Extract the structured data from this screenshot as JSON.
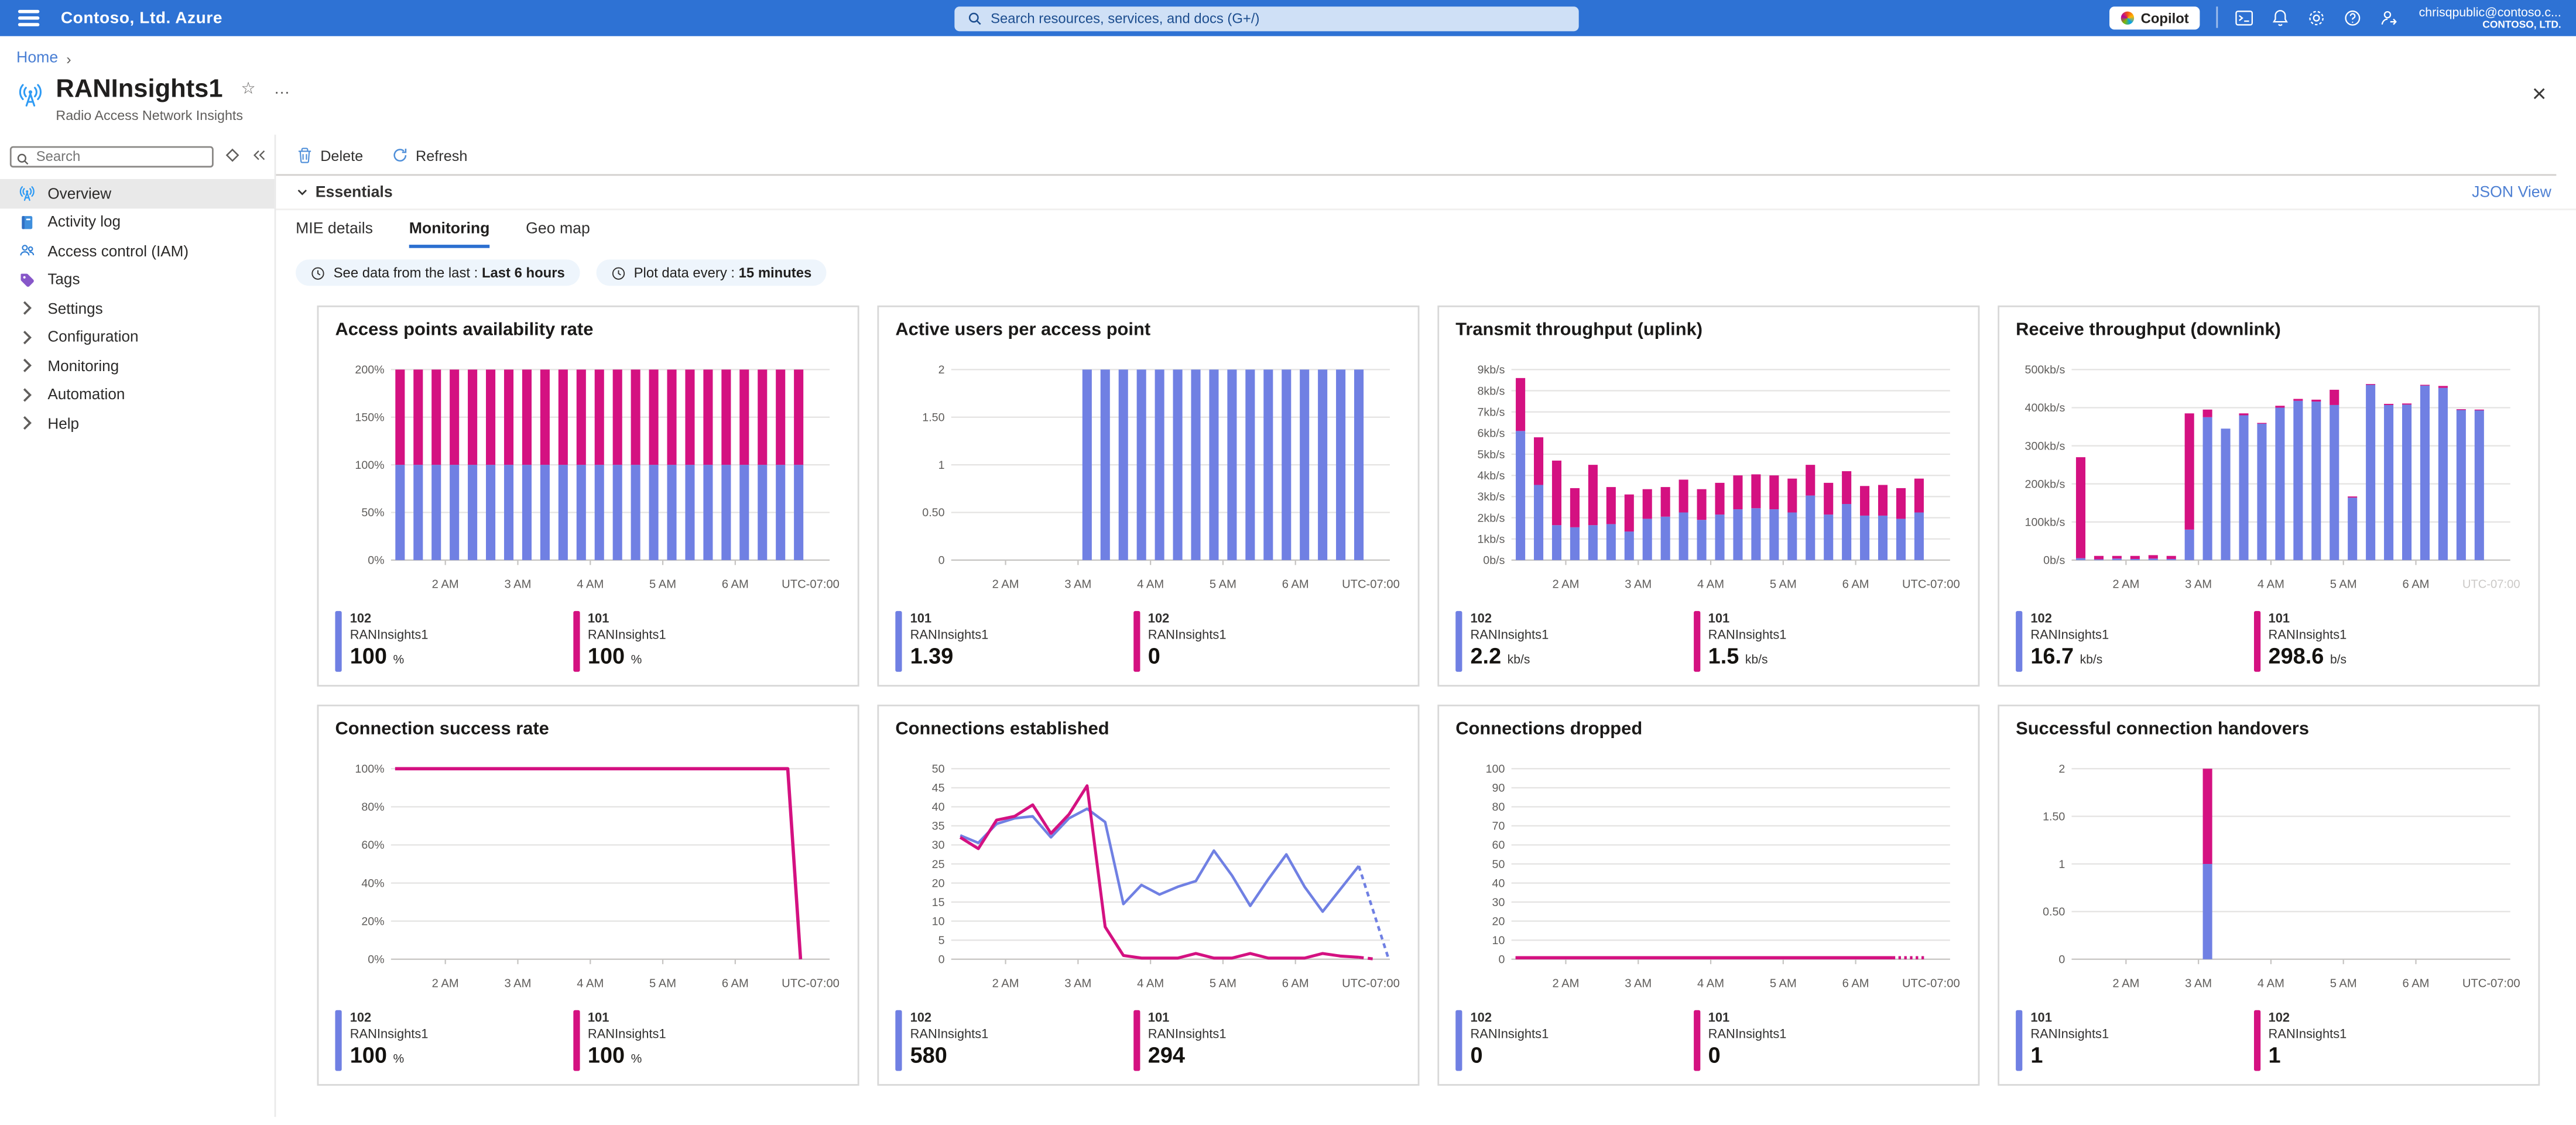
{
  "topbar": {
    "brand": "Contoso, Ltd. Azure",
    "search_placeholder": "Search resources, services, and docs (G+/)",
    "copilot_label": "Copilot",
    "account_name": "chrisqpublic@contoso.c...",
    "account_org": "CONTOSO, LTD."
  },
  "breadcrumb": {
    "home": "Home"
  },
  "page": {
    "title": "RANInsights1",
    "subtitle": "Radio Access Network Insights"
  },
  "sidebar": {
    "search_placeholder": "Search",
    "items": [
      {
        "label": "Overview",
        "icon": "tower",
        "selected": true
      },
      {
        "label": "Activity log",
        "icon": "book",
        "selected": false
      },
      {
        "label": "Access control (IAM)",
        "icon": "people",
        "selected": false
      },
      {
        "label": "Tags",
        "icon": "tag",
        "selected": false
      },
      {
        "label": "Settings",
        "icon": "chev",
        "selected": false
      },
      {
        "label": "Configuration",
        "icon": "chev",
        "selected": false
      },
      {
        "label": "Monitoring",
        "icon": "chev",
        "selected": false
      },
      {
        "label": "Automation",
        "icon": "chev",
        "selected": false
      },
      {
        "label": "Help",
        "icon": "chev",
        "selected": false
      }
    ]
  },
  "toolbar": {
    "delete_label": "Delete",
    "refresh_label": "Refresh"
  },
  "essentials": {
    "label": "Essentials",
    "json_view_label": "JSON View"
  },
  "tabs": [
    {
      "label": "MIE details",
      "active": false
    },
    {
      "label": "Monitoring",
      "active": true
    },
    {
      "label": "Geo map",
      "active": false
    }
  ],
  "filters": [
    {
      "prefix": "See data from the last :",
      "value": "Last 6 hours"
    },
    {
      "prefix": "Plot data every :",
      "value": "15 minutes"
    }
  ],
  "colors": {
    "blue": "#7080e3",
    "pink": "#d41181"
  },
  "x_axis": {
    "slots": 23,
    "ticks": [
      {
        "slot": 3,
        "label": "2 AM"
      },
      {
        "slot": 7,
        "label": "3 AM"
      },
      {
        "slot": 11,
        "label": "4 AM"
      },
      {
        "slot": 15,
        "label": "5 AM"
      },
      {
        "slot": 19,
        "label": "6 AM"
      }
    ],
    "utc_label": "UTC-07:00"
  },
  "chart_data": [
    {
      "title": "Access points availability rate",
      "type": "stacked_bar",
      "ylim": [
        0,
        200
      ],
      "yticks": [
        {
          "v": 0,
          "label": "0%"
        },
        {
          "v": 50,
          "label": "50%"
        },
        {
          "v": 100,
          "label": "100%"
        },
        {
          "v": 150,
          "label": "150%"
        },
        {
          "v": 200,
          "label": "200%"
        }
      ],
      "series": [
        {
          "id": "102",
          "color": "blue",
          "values": [
            100,
            100,
            100,
            100,
            100,
            100,
            100,
            100,
            100,
            100,
            100,
            100,
            100,
            100,
            100,
            100,
            100,
            100,
            100,
            100,
            100,
            100,
            100
          ]
        },
        {
          "id": "101",
          "color": "pink",
          "values": [
            100,
            100,
            100,
            100,
            100,
            100,
            100,
            100,
            100,
            100,
            100,
            100,
            100,
            100,
            100,
            100,
            100,
            100,
            100,
            100,
            100,
            100,
            100
          ]
        }
      ],
      "legend": [
        {
          "color": "blue",
          "id": "102",
          "name": "RANInsights1",
          "value": "100",
          "unit": "%"
        },
        {
          "color": "pink",
          "id": "101",
          "name": "RANInsights1",
          "value": "100",
          "unit": "%"
        }
      ]
    },
    {
      "title": "Active users per access point",
      "type": "stacked_bar",
      "ylim": [
        0,
        2
      ],
      "yticks": [
        {
          "v": 0,
          "label": "0"
        },
        {
          "v": 0.5,
          "label": "0.50"
        },
        {
          "v": 1,
          "label": "1"
        },
        {
          "v": 1.5,
          "label": "1.50"
        },
        {
          "v": 2,
          "label": "2"
        }
      ],
      "series": [
        {
          "id": "101",
          "color": "blue",
          "values": [
            0,
            0,
            0,
            0,
            0,
            0,
            0,
            2,
            2,
            2,
            2,
            2,
            2,
            2,
            2,
            2,
            2,
            2,
            2,
            2,
            2,
            2,
            2
          ]
        },
        {
          "id": "102",
          "color": "pink",
          "values": [
            0,
            0,
            0,
            0,
            0,
            0,
            0,
            0,
            0,
            0,
            0,
            0,
            0,
            0,
            0,
            0,
            0,
            0,
            0,
            0,
            0,
            0,
            0
          ]
        }
      ],
      "legend": [
        {
          "color": "blue",
          "id": "101",
          "name": "RANInsights1",
          "value": "1.39",
          "unit": ""
        },
        {
          "color": "pink",
          "id": "102",
          "name": "RANInsights1",
          "value": "0",
          "unit": ""
        }
      ]
    },
    {
      "title": "Transmit throughput (uplink)",
      "type": "stacked_bar",
      "ylim": [
        0,
        9
      ],
      "yticks": [
        {
          "v": 0,
          "label": "0b/s"
        },
        {
          "v": 1,
          "label": "1kb/s"
        },
        {
          "v": 2,
          "label": "2kb/s"
        },
        {
          "v": 3,
          "label": "3kb/s"
        },
        {
          "v": 4,
          "label": "4kb/s"
        },
        {
          "v": 5,
          "label": "5kb/s"
        },
        {
          "v": 6,
          "label": "6kb/s"
        },
        {
          "v": 7,
          "label": "7kb/s"
        },
        {
          "v": 8,
          "label": "8kb/s"
        },
        {
          "v": 9,
          "label": "9kb/s"
        }
      ],
      "series": [
        {
          "id": "102",
          "color": "blue",
          "values": [
            6.1,
            3.55,
            1.65,
            1.55,
            1.65,
            1.7,
            1.35,
            1.95,
            2.05,
            2.25,
            1.9,
            2.15,
            2.4,
            2.45,
            2.4,
            2.25,
            3.05,
            2.15,
            2.65,
            2.1,
            2.1,
            1.95,
            2.25
          ]
        },
        {
          "id": "101",
          "color": "pink",
          "values": [
            2.5,
            2.25,
            3.05,
            1.85,
            2.85,
            1.75,
            1.75,
            1.4,
            1.4,
            1.55,
            1.45,
            1.5,
            1.6,
            1.6,
            1.6,
            1.6,
            1.45,
            1.5,
            1.55,
            1.4,
            1.45,
            1.45,
            1.6
          ]
        }
      ],
      "legend": [
        {
          "color": "blue",
          "id": "102",
          "name": "RANInsights1",
          "value": "2.2",
          "unit": "kb/s"
        },
        {
          "color": "pink",
          "id": "101",
          "name": "RANInsights1",
          "value": "1.5",
          "unit": "kb/s"
        }
      ]
    },
    {
      "title": "Receive throughput (downlink)",
      "type": "stacked_bar",
      "ylim": [
        0,
        500
      ],
      "utc_muted": true,
      "yticks": [
        {
          "v": 0,
          "label": "0b/s"
        },
        {
          "v": 100,
          "label": "100kb/s"
        },
        {
          "v": 200,
          "label": "200kb/s"
        },
        {
          "v": 300,
          "label": "300kb/s"
        },
        {
          "v": 400,
          "label": "400kb/s"
        },
        {
          "v": 500,
          "label": "500kb/s"
        }
      ],
      "series": [
        {
          "id": "102",
          "color": "blue",
          "values": [
            5,
            2,
            4,
            3,
            4,
            3,
            80,
            375,
            345,
            380,
            358,
            400,
            418,
            416,
            407,
            164,
            460,
            407,
            408,
            458,
            452,
            394,
            393
          ]
        },
        {
          "id": "101",
          "color": "pink",
          "values": [
            265,
            9,
            7,
            8,
            9,
            8,
            305,
            20,
            0,
            5,
            2,
            5,
            5,
            5,
            40,
            3,
            2,
            3,
            3,
            2,
            5,
            2,
            2
          ]
        }
      ],
      "legend": [
        {
          "color": "blue",
          "id": "102",
          "name": "RANInsights1",
          "value": "16.7",
          "unit": "kb/s"
        },
        {
          "color": "pink",
          "id": "101",
          "name": "RANInsights1",
          "value": "298.6",
          "unit": "b/s"
        }
      ]
    },
    {
      "title": "Connection success rate",
      "type": "line",
      "ylim": [
        0,
        100
      ],
      "yticks": [
        {
          "v": 0,
          "label": "0%"
        },
        {
          "v": 20,
          "label": "20%"
        },
        {
          "v": 40,
          "label": "40%"
        },
        {
          "v": 60,
          "label": "60%"
        },
        {
          "v": 80,
          "label": "80%"
        },
        {
          "v": 100,
          "label": "100%"
        }
      ],
      "series": [
        {
          "id": "102",
          "color": "blue",
          "width": 1.4,
          "points": [
            [
              0.01,
              100
            ],
            [
              0.952,
              100
            ],
            [
              0.983,
              0
            ]
          ]
        },
        {
          "id": "101",
          "color": "pink",
          "width": 2,
          "points": [
            [
              0.01,
              100
            ],
            [
              0.952,
              100
            ],
            [
              0.983,
              0
            ]
          ]
        }
      ],
      "legend": [
        {
          "color": "blue",
          "id": "102",
          "name": "RANInsights1",
          "value": "100",
          "unit": "%"
        },
        {
          "color": "pink",
          "id": "101",
          "name": "RANInsights1",
          "value": "100",
          "unit": "%"
        }
      ]
    },
    {
      "title": "Connections established",
      "type": "line",
      "ylim": [
        0,
        50
      ],
      "yticks": [
        {
          "v": 0,
          "label": "0"
        },
        {
          "v": 5,
          "label": "5"
        },
        {
          "v": 10,
          "label": "10"
        },
        {
          "v": 15,
          "label": "15"
        },
        {
          "v": 20,
          "label": "20"
        },
        {
          "v": 25,
          "label": "25"
        },
        {
          "v": 30,
          "label": "30"
        },
        {
          "v": 35,
          "label": "35"
        },
        {
          "v": 40,
          "label": "40"
        },
        {
          "v": 45,
          "label": "45"
        },
        {
          "v": 50,
          "label": "50"
        }
      ],
      "series": [
        {
          "id": "102",
          "color": "blue",
          "width": 1.6,
          "values": [
            32.5,
            30.5,
            35.5,
            37,
            37.5,
            32,
            37,
            39.5,
            36,
            14.5,
            19.5,
            17,
            19,
            20.5,
            28.5,
            22,
            14,
            21,
            27.5,
            19,
            12.5,
            18.5,
            24.5
          ],
          "tail": {
            "to": [
              1.05,
              0
            ],
            "style": "dashed"
          }
        },
        {
          "id": "101",
          "color": "pink",
          "width": 1.8,
          "values": [
            32,
            29,
            36.5,
            37.5,
            40.5,
            33,
            38,
            45.5,
            8.5,
            1,
            0.3,
            0.3,
            0.3,
            1.5,
            0.3,
            0.3,
            1.5,
            0.3,
            0.3,
            0.3,
            1.5,
            0.8,
            0.5
          ],
          "tail": {
            "to": [
              1.02,
              0
            ],
            "style": "dashed"
          }
        }
      ],
      "legend": [
        {
          "color": "blue",
          "id": "102",
          "name": "RANInsights1",
          "value": "580",
          "unit": ""
        },
        {
          "color": "pink",
          "id": "101",
          "name": "RANInsights1",
          "value": "294",
          "unit": ""
        }
      ]
    },
    {
      "title": "Connections dropped",
      "type": "line",
      "ylim": [
        0,
        100
      ],
      "yticks": [
        {
          "v": 0,
          "label": "0"
        },
        {
          "v": 10,
          "label": "10"
        },
        {
          "v": 20,
          "label": "20"
        },
        {
          "v": 30,
          "label": "30"
        },
        {
          "v": 40,
          "label": "40"
        },
        {
          "v": 50,
          "label": "50"
        },
        {
          "v": 60,
          "label": "60"
        },
        {
          "v": 70,
          "label": "70"
        },
        {
          "v": 80,
          "label": "80"
        },
        {
          "v": 90,
          "label": "90"
        },
        {
          "v": 100,
          "label": "100"
        }
      ],
      "series": [
        {
          "id": "102",
          "color": "blue",
          "width": 1.6,
          "points": [
            [
              0.01,
              0.8
            ],
            [
              0.915,
              0.8
            ]
          ],
          "tail": {
            "to": [
              0.995,
              0.8
            ],
            "style": "dotted"
          }
        },
        {
          "id": "101",
          "color": "pink",
          "width": 2,
          "points": [
            [
              0.01,
              0.8
            ],
            [
              0.915,
              0.8
            ]
          ],
          "tail": {
            "to": [
              0.995,
              0.8
            ],
            "style": "dotted"
          }
        }
      ],
      "legend": [
        {
          "color": "blue",
          "id": "102",
          "name": "RANInsights1",
          "value": "0",
          "unit": ""
        },
        {
          "color": "pink",
          "id": "101",
          "name": "RANInsights1",
          "value": "0",
          "unit": ""
        }
      ]
    },
    {
      "title": "Successful connection handovers",
      "type": "stacked_bar",
      "ylim": [
        0,
        2
      ],
      "yticks": [
        {
          "v": 0,
          "label": "0"
        },
        {
          "v": 0.5,
          "label": "0.50"
        },
        {
          "v": 1,
          "label": "1"
        },
        {
          "v": 1.5,
          "label": "1.50"
        },
        {
          "v": 2,
          "label": "2"
        }
      ],
      "series": [
        {
          "id": "101",
          "color": "blue",
          "values": [
            0,
            0,
            0,
            0,
            0,
            0,
            0,
            1,
            0,
            0,
            0,
            0,
            0,
            0,
            0,
            0,
            0,
            0,
            0,
            0,
            0,
            0,
            0
          ]
        },
        {
          "id": "102",
          "color": "pink",
          "values": [
            0,
            0,
            0,
            0,
            0,
            0,
            0,
            1,
            0,
            0,
            0,
            0,
            0,
            0,
            0,
            0,
            0,
            0,
            0,
            0,
            0,
            0,
            0
          ]
        }
      ],
      "legend": [
        {
          "color": "blue",
          "id": "101",
          "name": "RANInsights1",
          "value": "1",
          "unit": ""
        },
        {
          "color": "pink",
          "id": "102",
          "name": "RANInsights1",
          "value": "1",
          "unit": ""
        }
      ]
    }
  ]
}
